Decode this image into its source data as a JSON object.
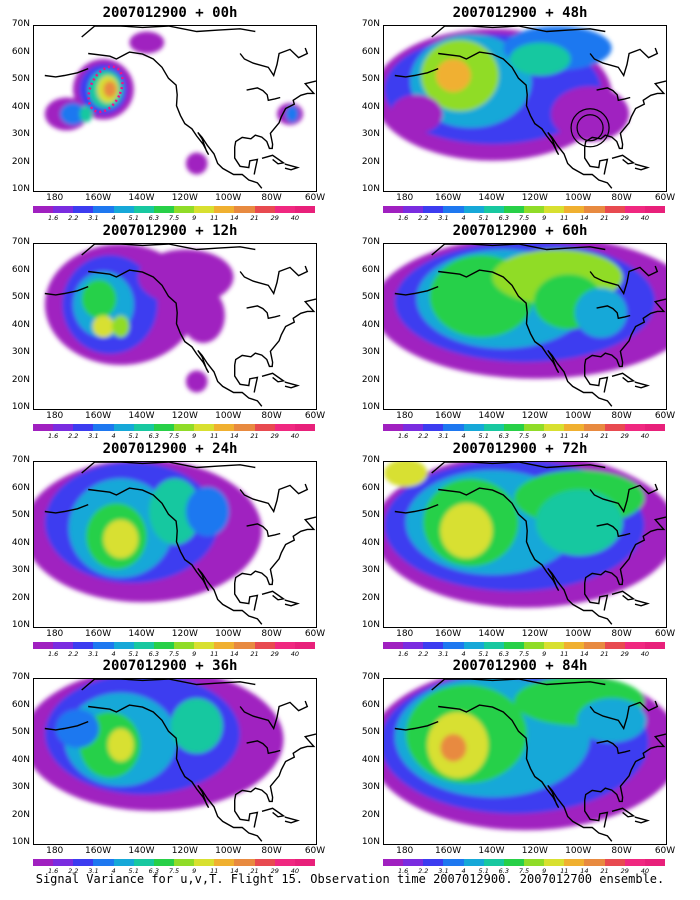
{
  "caption": "Signal Variance for u,v,T. Flight 15. Observation time 2007012900. 2007012700 ensemble.",
  "lat_labels": [
    "70N",
    "60N",
    "50N",
    "40N",
    "30N",
    "20N",
    "10N"
  ],
  "lon_labels": [
    "180",
    "160W",
    "140W",
    "120W",
    "100W",
    "80W",
    "60W"
  ],
  "colorbar": {
    "labels": [
      "1.6",
      "2.2",
      "3.1",
      "4",
      "5.1",
      "6.3",
      "7.5",
      "9",
      "11",
      "14",
      "21",
      "29",
      "40"
    ],
    "colors": [
      "#a020c0",
      "#7a2ce0",
      "#3c3cf0",
      "#1e78f0",
      "#16a8d8",
      "#18c8a0",
      "#28d048",
      "#90dc28",
      "#d8e030",
      "#f0b030",
      "#e88a40",
      "#e84a50",
      "#f02880"
    ]
  },
  "panels": [
    {
      "title": "2007012900 + 00h",
      "lead_hours": 0
    },
    {
      "title": "2007012900 + 48h",
      "lead_hours": 48
    },
    {
      "title": "2007012900 + 12h",
      "lead_hours": 12
    },
    {
      "title": "2007012900 + 60h",
      "lead_hours": 60
    },
    {
      "title": "2007012900 + 24h",
      "lead_hours": 24
    },
    {
      "title": "2007012900 + 72h",
      "lead_hours": 72
    },
    {
      "title": "2007012900 + 36h",
      "lead_hours": 36
    },
    {
      "title": "2007012900 + 84h",
      "lead_hours": 84
    }
  ]
}
